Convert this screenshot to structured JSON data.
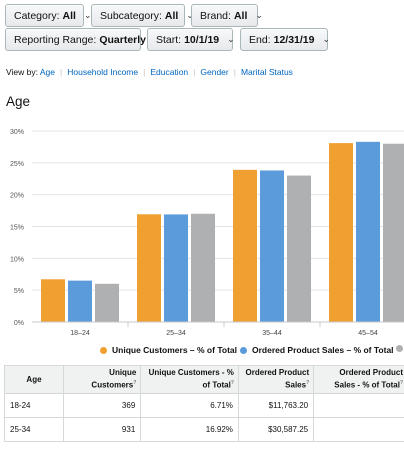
{
  "filters": {
    "category": {
      "label": "Category:",
      "value": "All"
    },
    "subcategory": {
      "label": "Subcategory:",
      "value": "All"
    },
    "brand": {
      "label": "Brand:",
      "value": "All"
    },
    "reporting_range": {
      "label": "Reporting Range:",
      "value": "Quarterly"
    },
    "start": {
      "label": "Start:",
      "value": "10/1/19"
    },
    "end": {
      "label": "End:",
      "value": "12/31/19"
    },
    "chevron": "⌄"
  },
  "view_by": {
    "label": "View by:",
    "options": [
      "Age",
      "Household Income",
      "Education",
      "Gender",
      "Marital Status"
    ],
    "separator": "|"
  },
  "section_title": "Age",
  "chart_data": {
    "type": "bar",
    "categories": [
      "18–24",
      "25–34",
      "35–44",
      "45–54"
    ],
    "series": [
      {
        "name": "Unique Customers – % of Total",
        "values": [
          6.71,
          16.92,
          23.9,
          28.1
        ],
        "color": "#f0a030"
      },
      {
        "name": "Ordered Product Sales – % of Total",
        "values": [
          6.5,
          16.9,
          23.8,
          28.3
        ],
        "color": "#5b9bdc"
      },
      {
        "name": "",
        "values": [
          6.0,
          17.0,
          23.0,
          28.0
        ],
        "color": "#aeb0b2"
      }
    ],
    "yticks": [
      "0%",
      "5%",
      "10%",
      "15%",
      "20%",
      "25%",
      "30%"
    ],
    "ylim": [
      0,
      30
    ],
    "grid": true,
    "legend": "bottom"
  },
  "table": {
    "headers": [
      {
        "text": "Age",
        "sup": ""
      },
      {
        "text": "Unique Customers",
        "sup": "?"
      },
      {
        "text": "Unique Customers - % of Total",
        "sup": "?"
      },
      {
        "text": "Ordered Product Sales",
        "sup": "?"
      },
      {
        "text": "Ordered Product Sales - % of Total",
        "sup": "?"
      }
    ],
    "rows": [
      [
        "18-24",
        "369",
        "6.71%",
        "$11,763.20",
        ""
      ],
      [
        "25-34",
        "931",
        "16.92%",
        "$30,587.25",
        ""
      ]
    ]
  }
}
